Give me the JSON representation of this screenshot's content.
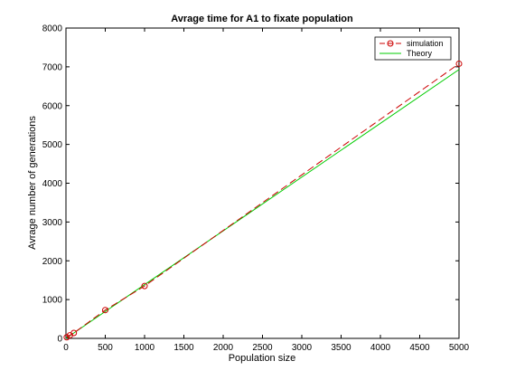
{
  "chart_data": {
    "type": "line",
    "title": "Avrage time for A1 to fixate population",
    "xlabel": "Population size",
    "ylabel": "Avrage number of generations",
    "xlim": [
      0,
      5000
    ],
    "ylim": [
      0,
      8000
    ],
    "xticks": [
      0,
      500,
      1000,
      1500,
      2000,
      2500,
      3000,
      3500,
      4000,
      4500,
      5000
    ],
    "yticks": [
      0,
      1000,
      2000,
      3000,
      4000,
      5000,
      6000,
      7000,
      8000
    ],
    "xtick_labels": [
      "0",
      "500",
      "1000",
      "1500",
      "2000",
      "2500",
      "3000",
      "3500",
      "4000",
      "4500",
      "5000"
    ],
    "ytick_labels": [
      "0",
      "1000",
      "2000",
      "3000",
      "4000",
      "5000",
      "6000",
      "7000",
      "8000"
    ],
    "grid": false,
    "legend_position": "top-right",
    "series": [
      {
        "name": "simulation",
        "color": "#cc0000",
        "line_style": "dashed",
        "marker": "circle",
        "x": [
          10,
          50,
          100,
          500,
          1000,
          5000
        ],
        "y": [
          30,
          80,
          140,
          730,
          1350,
          7080
        ]
      },
      {
        "name": "Theory",
        "color": "#00cc00",
        "line_style": "solid",
        "marker": "none",
        "x": [
          0,
          5000
        ],
        "y": [
          0,
          6930
        ]
      }
    ]
  }
}
